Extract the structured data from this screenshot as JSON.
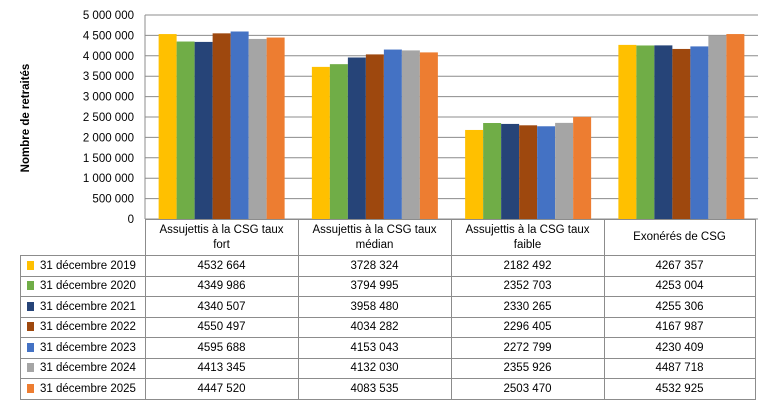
{
  "chart_data": {
    "type": "bar",
    "title": "",
    "ylabel": "Nombre de retraités",
    "xlabel": "",
    "ylim": [
      0,
      5000000
    ],
    "yticks": [
      "0",
      "500 000",
      "1 000 000",
      "1 500 000",
      "2 000 000",
      "2 500 000",
      "3 000 000",
      "3 500 000",
      "4 000 000",
      "4 500 000",
      "5 000 000"
    ],
    "grid": true,
    "legend": "table-left",
    "categories": [
      "Assujettis à la CSG taux fort",
      "Assujettis à la CSG taux médian",
      "Assujettis à la CSG taux faible",
      "Exonérés de CSG"
    ],
    "series": [
      {
        "name": "31 décembre 2019",
        "color": "#FFC000",
        "values": [
          4532664,
          3728324,
          2182492,
          4267357
        ],
        "labels": [
          "4532 664",
          "3728 324",
          "2182 492",
          "4267 357"
        ]
      },
      {
        "name": "31 décembre 2020",
        "color": "#70AD47",
        "values": [
          4349986,
          3794995,
          2352703,
          4253004
        ],
        "labels": [
          "4349 986",
          "3794 995",
          "2352 703",
          "4253 004"
        ]
      },
      {
        "name": "31 décembre 2021",
        "color": "#264478",
        "values": [
          4340507,
          3958480,
          2330265,
          4255306
        ],
        "labels": [
          "4340 507",
          "3958 480",
          "2330 265",
          "4255 306"
        ]
      },
      {
        "name": "31 décembre 2022",
        "color": "#9E480E",
        "values": [
          4550497,
          4034282,
          2296405,
          4167987
        ],
        "labels": [
          "4550 497",
          "4034 282",
          "2296 405",
          "4167 987"
        ]
      },
      {
        "name": "31 décembre 2023",
        "color": "#4472C4",
        "values": [
          4595688,
          4153043,
          2272799,
          4230409
        ],
        "labels": [
          "4595 688",
          "4153 043",
          "2272 799",
          "4230 409"
        ]
      },
      {
        "name": "31 décembre 2024",
        "color": "#A5A5A5",
        "values": [
          4413345,
          4132030,
          2355926,
          4487718
        ],
        "labels": [
          "4413 345",
          "4132 030",
          "2355 926",
          "4487 718"
        ]
      },
      {
        "name": "31 décembre 2025",
        "color": "#ED7D31",
        "values": [
          4447520,
          4083535,
          2503470,
          4532925
        ],
        "labels": [
          "4447 520",
          "4083 535",
          "2503 470",
          "4532 925"
        ]
      }
    ]
  }
}
